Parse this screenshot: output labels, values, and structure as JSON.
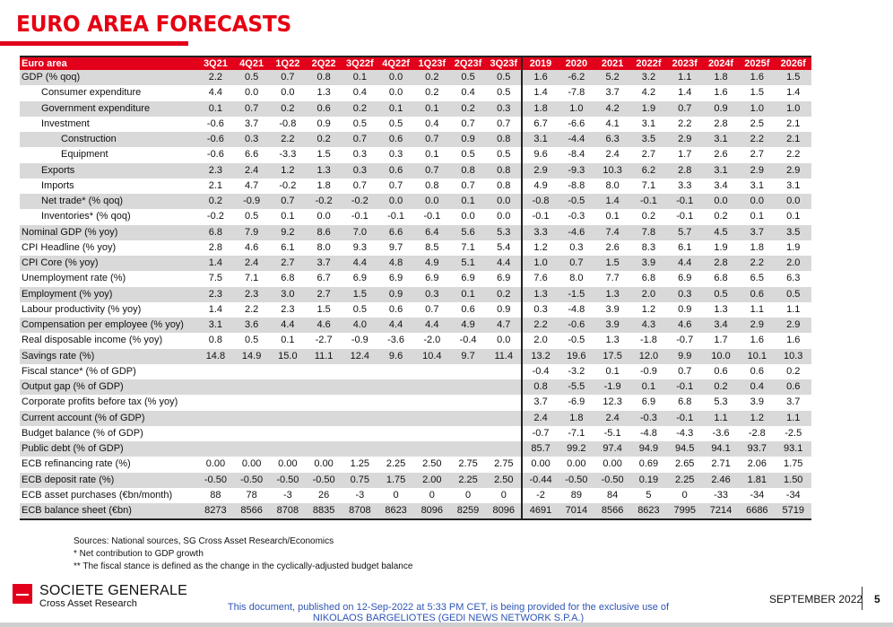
{
  "title": "EURO AREA FORECASTS",
  "table": {
    "corner": "Euro area",
    "quarters": [
      "3Q21",
      "4Q21",
      "1Q22",
      "2Q22",
      "3Q22f",
      "4Q22f",
      "1Q23f",
      "2Q23f",
      "3Q23f"
    ],
    "years": [
      "2019",
      "2020",
      "2021",
      "2022f",
      "2023f",
      "2024f",
      "2025f",
      "2026f"
    ],
    "rows": [
      {
        "label": "GDP (% qoq)",
        "indent": 0,
        "q": [
          "2.2",
          "0.5",
          "0.7",
          "0.8",
          "0.1",
          "0.0",
          "0.2",
          "0.5",
          "0.5"
        ],
        "a": [
          "1.6",
          "-6.2",
          "5.2",
          "3.2",
          "1.1",
          "1.8",
          "1.6",
          "1.5"
        ]
      },
      {
        "label": "Consumer expenditure",
        "indent": 1,
        "q": [
          "4.4",
          "0.0",
          "0.0",
          "1.3",
          "0.4",
          "0.0",
          "0.2",
          "0.4",
          "0.5"
        ],
        "a": [
          "1.4",
          "-7.8",
          "3.7",
          "4.2",
          "1.4",
          "1.6",
          "1.5",
          "1.4"
        ]
      },
      {
        "label": "Government expenditure",
        "indent": 1,
        "q": [
          "0.1",
          "0.7",
          "0.2",
          "0.6",
          "0.2",
          "0.1",
          "0.1",
          "0.2",
          "0.3"
        ],
        "a": [
          "1.8",
          "1.0",
          "4.2",
          "1.9",
          "0.7",
          "0.9",
          "1.0",
          "1.0"
        ]
      },
      {
        "label": "Investment",
        "indent": 1,
        "q": [
          "-0.6",
          "3.7",
          "-0.8",
          "0.9",
          "0.5",
          "0.5",
          "0.4",
          "0.7",
          "0.7"
        ],
        "a": [
          "6.7",
          "-6.6",
          "4.1",
          "3.1",
          "2.2",
          "2.8",
          "2.5",
          "2.1"
        ]
      },
      {
        "label": "Construction",
        "indent": 2,
        "q": [
          "-0.6",
          "0.3",
          "2.2",
          "0.2",
          "0.7",
          "0.6",
          "0.7",
          "0.9",
          "0.8"
        ],
        "a": [
          "3.1",
          "-4.4",
          "6.3",
          "3.5",
          "2.9",
          "3.1",
          "2.2",
          "2.1"
        ]
      },
      {
        "label": "Equipment",
        "indent": 2,
        "q": [
          "-0.6",
          "6.6",
          "-3.3",
          "1.5",
          "0.3",
          "0.3",
          "0.1",
          "0.5",
          "0.5"
        ],
        "a": [
          "9.6",
          "-8.4",
          "2.4",
          "2.7",
          "1.7",
          "2.6",
          "2.7",
          "2.2"
        ]
      },
      {
        "label": "Exports",
        "indent": 1,
        "q": [
          "2.3",
          "2.4",
          "1.2",
          "1.3",
          "0.3",
          "0.6",
          "0.7",
          "0.8",
          "0.8"
        ],
        "a": [
          "2.9",
          "-9.3",
          "10.3",
          "6.2",
          "2.8",
          "3.1",
          "2.9",
          "2.9"
        ]
      },
      {
        "label": "Imports",
        "indent": 1,
        "q": [
          "2.1",
          "4.7",
          "-0.2",
          "1.8",
          "0.7",
          "0.7",
          "0.8",
          "0.7",
          "0.8"
        ],
        "a": [
          "4.9",
          "-8.8",
          "8.0",
          "7.1",
          "3.3",
          "3.4",
          "3.1",
          "3.1"
        ]
      },
      {
        "label": "Net trade* (% qoq)",
        "indent": 1,
        "q": [
          "0.2",
          "-0.9",
          "0.7",
          "-0.2",
          "-0.2",
          "0.0",
          "0.0",
          "0.1",
          "0.0"
        ],
        "a": [
          "-0.8",
          "-0.5",
          "1.4",
          "-0.1",
          "-0.1",
          "0.0",
          "0.0",
          "0.0"
        ]
      },
      {
        "label": "Inventories* (% qoq)",
        "indent": 1,
        "q": [
          "-0.2",
          "0.5",
          "0.1",
          "0.0",
          "-0.1",
          "-0.1",
          "-0.1",
          "0.0",
          "0.0"
        ],
        "a": [
          "-0.1",
          "-0.3",
          "0.1",
          "0.2",
          "-0.1",
          "0.2",
          "0.1",
          "0.1"
        ]
      },
      {
        "label": "Nominal GDP (% yoy)",
        "indent": 0,
        "q": [
          "6.8",
          "7.9",
          "9.2",
          "8.6",
          "7.0",
          "6.6",
          "6.4",
          "5.6",
          "5.3"
        ],
        "a": [
          "3.3",
          "-4.6",
          "7.4",
          "7.8",
          "5.7",
          "4.5",
          "3.7",
          "3.5"
        ]
      },
      {
        "label": "CPI Headline (% yoy)",
        "indent": 0,
        "q": [
          "2.8",
          "4.6",
          "6.1",
          "8.0",
          "9.3",
          "9.7",
          "8.5",
          "7.1",
          "5.4"
        ],
        "a": [
          "1.2",
          "0.3",
          "2.6",
          "8.3",
          "6.1",
          "1.9",
          "1.8",
          "1.9"
        ]
      },
      {
        "label": "CPI Core (% yoy)",
        "indent": 0,
        "q": [
          "1.4",
          "2.4",
          "2.7",
          "3.7",
          "4.4",
          "4.8",
          "4.9",
          "5.1",
          "4.4"
        ],
        "a": [
          "1.0",
          "0.7",
          "1.5",
          "3.9",
          "4.4",
          "2.8",
          "2.2",
          "2.0"
        ]
      },
      {
        "label": "Unemployment rate (%)",
        "indent": 0,
        "q": [
          "7.5",
          "7.1",
          "6.8",
          "6.7",
          "6.9",
          "6.9",
          "6.9",
          "6.9",
          "6.9"
        ],
        "a": [
          "7.6",
          "8.0",
          "7.7",
          "6.8",
          "6.9",
          "6.8",
          "6.5",
          "6.3"
        ]
      },
      {
        "label": "Employment (% yoy)",
        "indent": 0,
        "q": [
          "2.3",
          "2.3",
          "3.0",
          "2.7",
          "1.5",
          "0.9",
          "0.3",
          "0.1",
          "0.2"
        ],
        "a": [
          "1.3",
          "-1.5",
          "1.3",
          "2.0",
          "0.3",
          "0.5",
          "0.6",
          "0.5"
        ]
      },
      {
        "label": "Labour productivity (% yoy)",
        "indent": 0,
        "q": [
          "1.4",
          "2.2",
          "2.3",
          "1.5",
          "0.5",
          "0.6",
          "0.7",
          "0.6",
          "0.9"
        ],
        "a": [
          "0.3",
          "-4.8",
          "3.9",
          "1.2",
          "0.9",
          "1.3",
          "1.1",
          "1.1"
        ]
      },
      {
        "label": "Compensation per employee (% yoy)",
        "indent": 0,
        "q": [
          "3.1",
          "3.6",
          "4.4",
          "4.6",
          "4.0",
          "4.4",
          "4.4",
          "4.9",
          "4.7"
        ],
        "a": [
          "2.2",
          "-0.6",
          "3.9",
          "4.3",
          "4.6",
          "3.4",
          "2.9",
          "2.9"
        ]
      },
      {
        "label": "Real disposable income (% yoy)",
        "indent": 0,
        "q": [
          "0.8",
          "0.5",
          "0.1",
          "-2.7",
          "-0.9",
          "-3.6",
          "-2.0",
          "-0.4",
          "0.0"
        ],
        "a": [
          "2.0",
          "-0.5",
          "1.3",
          "-1.8",
          "-0.7",
          "1.7",
          "1.6",
          "1.6"
        ]
      },
      {
        "label": "Savings rate (%)",
        "indent": 0,
        "q": [
          "14.8",
          "14.9",
          "15.0",
          "11.1",
          "12.4",
          "9.6",
          "10.4",
          "9.7",
          "11.4"
        ],
        "a": [
          "13.2",
          "19.6",
          "17.5",
          "12.0",
          "9.9",
          "10.0",
          "10.1",
          "10.3"
        ]
      },
      {
        "label": "Fiscal stance* (% of GDP)",
        "indent": 0,
        "q": [
          "",
          "",
          "",
          "",
          "",
          "",
          "",
          "",
          ""
        ],
        "a": [
          "-0.4",
          "-3.2",
          "0.1",
          "-0.9",
          "0.7",
          "0.6",
          "0.6",
          "0.2"
        ]
      },
      {
        "label": "Output gap (% of GDP)",
        "indent": 0,
        "q": [
          "",
          "",
          "",
          "",
          "",
          "",
          "",
          "",
          ""
        ],
        "a": [
          "0.8",
          "-5.5",
          "-1.9",
          "0.1",
          "-0.1",
          "0.2",
          "0.4",
          "0.6"
        ]
      },
      {
        "label": "Corporate profits before tax (% yoy)",
        "indent": 0,
        "q": [
          "",
          "",
          "",
          "",
          "",
          "",
          "",
          "",
          ""
        ],
        "a": [
          "3.7",
          "-6.9",
          "12.3",
          "6.9",
          "6.8",
          "5.3",
          "3.9",
          "3.7"
        ]
      },
      {
        "label": "Current account (% of GDP)",
        "indent": 0,
        "q": [
          "",
          "",
          "",
          "",
          "",
          "",
          "",
          "",
          ""
        ],
        "a": [
          "2.4",
          "1.8",
          "2.4",
          "-0.3",
          "-0.1",
          "1.1",
          "1.2",
          "1.1"
        ]
      },
      {
        "label": "Budget balance (% of GDP)",
        "indent": 0,
        "q": [
          "",
          "",
          "",
          "",
          "",
          "",
          "",
          "",
          ""
        ],
        "a": [
          "-0.7",
          "-7.1",
          "-5.1",
          "-4.8",
          "-4.3",
          "-3.6",
          "-2.8",
          "-2.5"
        ]
      },
      {
        "label": "Public debt (% of GDP)",
        "indent": 0,
        "q": [
          "",
          "",
          "",
          "",
          "",
          "",
          "",
          "",
          ""
        ],
        "a": [
          "85.7",
          "99.2",
          "97.4",
          "94.9",
          "94.5",
          "94.1",
          "93.7",
          "93.1"
        ]
      },
      {
        "label": "ECB refinancing rate (%)",
        "indent": 0,
        "q": [
          "0.00",
          "0.00",
          "0.00",
          "0.00",
          "1.25",
          "2.25",
          "2.50",
          "2.75",
          "2.75"
        ],
        "a": [
          "0.00",
          "0.00",
          "0.00",
          "0.69",
          "2.65",
          "2.71",
          "2.06",
          "1.75"
        ]
      },
      {
        "label": "ECB deposit rate (%)",
        "indent": 0,
        "q": [
          "-0.50",
          "-0.50",
          "-0.50",
          "-0.50",
          "0.75",
          "1.75",
          "2.00",
          "2.25",
          "2.50"
        ],
        "a": [
          "-0.44",
          "-0.50",
          "-0.50",
          "0.19",
          "2.25",
          "2.46",
          "1.81",
          "1.50"
        ]
      },
      {
        "label": "ECB asset purchases (€bn/month)",
        "indent": 0,
        "q": [
          "88",
          "78",
          "-3",
          "26",
          "-3",
          "0",
          "0",
          "0",
          "0"
        ],
        "a": [
          "-2",
          "89",
          "84",
          "5",
          "0",
          "-33",
          "-34",
          "-34"
        ]
      },
      {
        "label": "ECB balance sheet (€bn)",
        "indent": 0,
        "q": [
          "8273",
          "8566",
          "8708",
          "8835",
          "8708",
          "8623",
          "8096",
          "8259",
          "8096"
        ],
        "a": [
          "4691",
          "7014",
          "8566",
          "8623",
          "7995",
          "7214",
          "6686",
          "5719"
        ]
      }
    ]
  },
  "notes": {
    "sources": "Sources: National sources, SG Cross Asset Research/Economics",
    "note1": "* Net contribution to GDP growth",
    "note2": "** The fiscal stance is defined as the change in the cyclically-adjusted budget balance"
  },
  "footer": {
    "brand": "SOCIETE GENERALE",
    "brand_sub": "Cross Asset Research",
    "disclaimer_line1": "This document, published on 12-Sep-2022 at 5:33 PM CET, is being provided for the exclusive use of",
    "disclaimer_line2": "NIKOLAOS BARGELIOTES (GEDI NEWS NETWORK S.P.A.)",
    "date": "SEPTEMBER 2022",
    "page": "5"
  },
  "colors": {
    "accent": "#e2001a",
    "stripe": "#d9d9d9",
    "disclaimer": "#2d55b5"
  }
}
